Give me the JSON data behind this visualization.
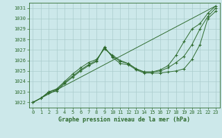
{
  "xlabel": "Graphe pression niveau de la mer (hPa)",
  "bg_color": "#cce8ea",
  "line_color": "#2d6a2d",
  "grid_color": "#aacccc",
  "xlim": [
    -0.5,
    23.5
  ],
  "ylim": [
    1021.5,
    1031.5
  ],
  "yticks": [
    1022,
    1023,
    1024,
    1025,
    1026,
    1027,
    1028,
    1029,
    1030,
    1031
  ],
  "xticks": [
    0,
    1,
    2,
    3,
    4,
    5,
    6,
    7,
    8,
    9,
    10,
    11,
    12,
    13,
    14,
    15,
    16,
    17,
    18,
    19,
    20,
    21,
    22,
    23
  ],
  "series": [
    {
      "x": [
        0,
        1,
        2,
        3,
        4,
        5,
        6,
        7,
        8,
        9,
        10,
        11,
        12,
        13,
        14,
        15,
        16,
        17,
        18,
        19,
        20,
        21,
        22,
        23
      ],
      "y": [
        1022.0,
        1022.4,
        1022.9,
        1023.1,
        1023.8,
        1024.4,
        1025.0,
        1025.5,
        1025.9,
        1027.3,
        1026.3,
        1025.7,
        1025.6,
        1025.1,
        1024.8,
        1024.8,
        1024.8,
        1024.9,
        1025.0,
        1025.2,
        1026.1,
        1027.5,
        1030.0,
        1030.7
      ],
      "marker": true
    },
    {
      "x": [
        0,
        1,
        2,
        3,
        4,
        5,
        6,
        7,
        8,
        9,
        10,
        11,
        12,
        13,
        14,
        15,
        16,
        17,
        18,
        19,
        20,
        21,
        22,
        23
      ],
      "y": [
        1022.0,
        1022.4,
        1023.0,
        1023.2,
        1023.9,
        1024.5,
        1025.1,
        1025.6,
        1026.0,
        1027.2,
        1026.4,
        1025.9,
        1025.7,
        1025.2,
        1024.9,
        1024.9,
        1025.0,
        1025.3,
        1025.8,
        1026.4,
        1027.5,
        1029.0,
        1030.2,
        1031.0
      ],
      "marker": true
    },
    {
      "x": [
        0,
        1,
        2,
        3,
        4,
        5,
        6,
        7,
        8,
        9,
        10,
        11,
        12,
        13,
        14,
        15,
        16,
        17,
        18,
        19,
        20,
        21,
        22,
        23
      ],
      "y": [
        1022.0,
        1022.4,
        1023.0,
        1023.3,
        1024.0,
        1024.7,
        1025.3,
        1025.8,
        1026.1,
        1027.1,
        1026.5,
        1026.0,
        1025.7,
        1025.2,
        1024.9,
        1024.9,
        1025.1,
        1025.5,
        1026.5,
        1027.8,
        1029.0,
        1029.5,
        1030.5,
        1031.2
      ],
      "marker": true
    },
    {
      "x": [
        0,
        23
      ],
      "y": [
        1022.0,
        1031.2
      ],
      "marker": false
    }
  ]
}
